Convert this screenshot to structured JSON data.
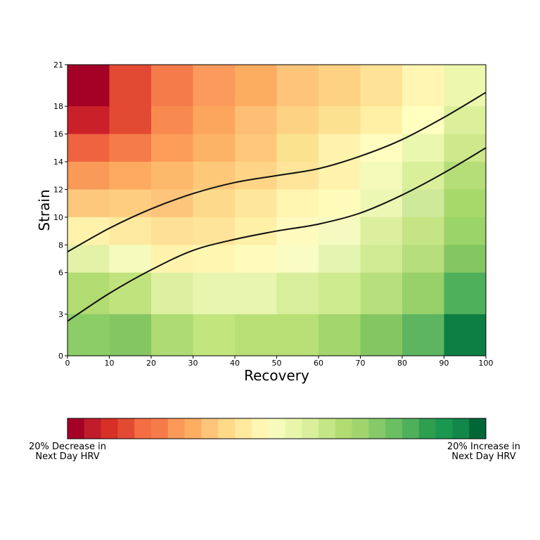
{
  "chart_data": {
    "type": "heatmap",
    "xlabel": "Recovery",
    "ylabel": "Strain",
    "xlim": [
      0,
      100
    ],
    "ylim": [
      0,
      21
    ],
    "x_edges": [
      0,
      10,
      20,
      30,
      40,
      50,
      60,
      70,
      80,
      90,
      100
    ],
    "y_edges": [
      0,
      3,
      6,
      8,
      10,
      12,
      14,
      16,
      18,
      21
    ],
    "x_ticks": [
      0,
      10,
      20,
      30,
      40,
      50,
      60,
      70,
      80,
      90,
      100
    ],
    "y_ticks": [
      0,
      3,
      6,
      8,
      10,
      12,
      14,
      16,
      18,
      21
    ],
    "cell_colors_top_to_bottom": [
      [
        "#a50026",
        "#e34a33",
        "#f67b4a",
        "#fb9a5a",
        "#fdad60",
        "#fec47a",
        "#fed283",
        "#fee396",
        "#fff6b4",
        "#eef7ae"
      ],
      [
        "#c9202a",
        "#e34a33",
        "#f88a50",
        "#fca55d",
        "#fdbf74",
        "#fed283",
        "#fbe190",
        "#fff0a6",
        "#ffffc0",
        "#dcf09c"
      ],
      [
        "#ef6340",
        "#f67b4a",
        "#fb9d59",
        "#fdb365",
        "#fec77a",
        "#fbe28e",
        "#fff3ad",
        "#fffdc0",
        "#eaf7ae",
        "#cfe88b"
      ],
      [
        "#fa9a58",
        "#fcaa5f",
        "#fdb96b",
        "#fdc877",
        "#fed486",
        "#fee59a",
        "#fff3ae",
        "#f2f9b9",
        "#d9ef9a",
        "#b5de79"
      ],
      [
        "#fec87c",
        "#fecd80",
        "#fdc57b",
        "#fdd98b",
        "#fee79c",
        "#fff5b0",
        "#fefbbb",
        "#ecf7b4",
        "#cfe99a",
        "#a6d96a"
      ],
      [
        "#fff3ac",
        "#fee9a0",
        "#fee196",
        "#fee49a",
        "#fff0a8",
        "#fffbbe",
        "#f4fac0",
        "#dcef9f",
        "#c5e584",
        "#9bd468"
      ],
      [
        "#e3f2a6",
        "#f5fbbd",
        "#fff3ad",
        "#fff6b2",
        "#fffbbb",
        "#fafdc3",
        "#e5f4b0",
        "#d1eb94",
        "#b6de7c",
        "#84c762"
      ],
      [
        "#b1dc72",
        "#c0e37e",
        "#ddf0a2",
        "#e7f5ae",
        "#e7f5ae",
        "#d9ee9c",
        "#cfeb8f",
        "#b7df7b",
        "#98d16a",
        "#4fb05b"
      ],
      [
        "#8dcd68",
        "#84c762",
        "#aedb73",
        "#c3e57e",
        "#b9e076",
        "#b9e076",
        "#a3d76e",
        "#84c762",
        "#5db65f",
        "#0e7f44"
      ]
    ],
    "curves": [
      {
        "x": [
          0,
          10,
          20,
          30,
          40,
          50,
          60,
          70,
          80,
          90,
          100
        ],
        "y": [
          7.5,
          9.2,
          10.6,
          11.7,
          12.5,
          13.0,
          13.5,
          14.4,
          15.6,
          17.2,
          19.0
        ]
      },
      {
        "x": [
          0,
          10,
          20,
          30,
          40,
          50,
          60,
          70,
          80,
          90,
          100
        ],
        "y": [
          2.5,
          4.5,
          6.2,
          7.6,
          8.4,
          9.0,
          9.5,
          10.3,
          11.6,
          13.2,
          15.0
        ]
      }
    ],
    "colorbar": {
      "colors": [
        "#a50026",
        "#c11c2b",
        "#d73027",
        "#e34a33",
        "#f46d43",
        "#f67b4a",
        "#fb9a58",
        "#fdae61",
        "#fec57a",
        "#fed987",
        "#fee99c",
        "#fff6b3",
        "#f6fbbb",
        "#e8f5ab",
        "#d9ef9b",
        "#c5e685",
        "#b1dc72",
        "#a0d46d",
        "#86c96a",
        "#6bbf63",
        "#4fb05b",
        "#2f9e4f",
        "#1a9850",
        "#118849",
        "#006837"
      ],
      "left_label": "20% Decrease in Next Day HRV",
      "right_label": "20% Increase in Next Day HRV"
    }
  }
}
